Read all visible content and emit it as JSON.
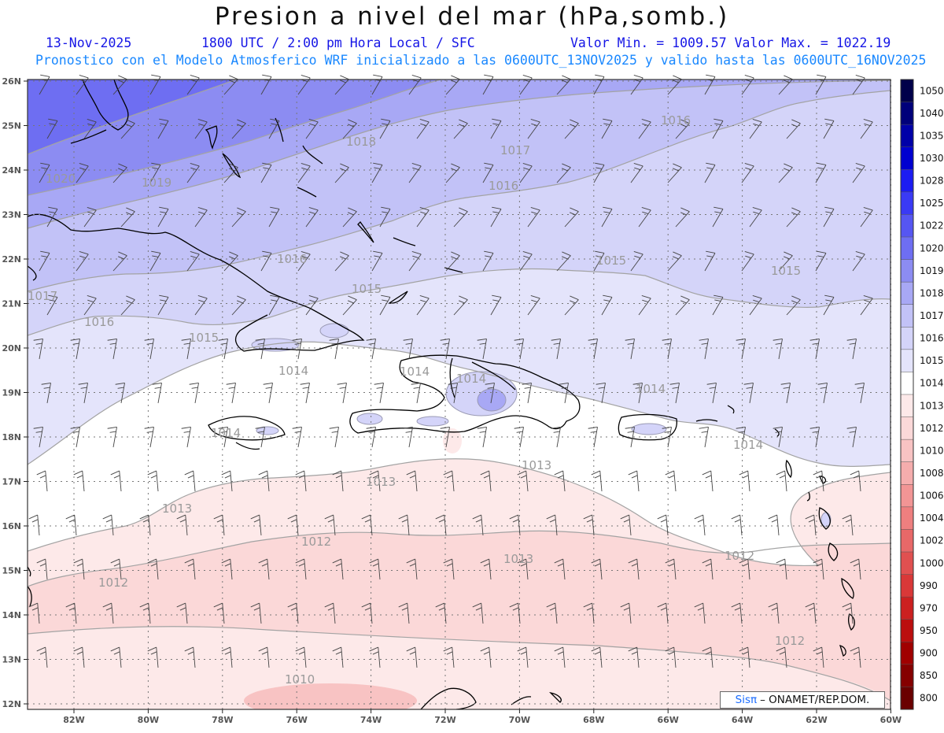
{
  "header": {
    "title": "Presion a nivel del mar (hPa,somb.)",
    "date": "13-Nov-2025",
    "time_label": "1800 UTC / 2:00 pm Hora Local / SFC",
    "min_max": "Valor Min. = 1009.57  Valor Max. = 1022.19",
    "run_info": "Pronostico con el Modelo Atmosferico WRF inicializado a las 0600UTC_13NOV2025 y valido hasta las  0600UTC_16NOV2025"
  },
  "map": {
    "lon_labels": [
      "82W",
      "80W",
      "78W",
      "76W",
      "74W",
      "72W",
      "70W",
      "68W",
      "66W",
      "64W",
      "62W",
      "60W"
    ],
    "lat_labels": [
      "26N",
      "25N",
      "24N",
      "23N",
      "22N",
      "21N",
      "20N",
      "19N",
      "18N",
      "17N",
      "16N",
      "15N",
      "14N",
      "13N",
      "12N"
    ],
    "value_range": {
      "min": 1009.57,
      "max": 1022.19
    },
    "pressure_bands": [
      {
        "level": "1020",
        "color": "#6e6ef2"
      },
      {
        "level": "1019",
        "color": "#8c8cf2"
      },
      {
        "level": "1018",
        "color": "#a8a8f5"
      },
      {
        "level": "1017",
        "color": "#c2c2f7"
      },
      {
        "level": "1016",
        "color": "#d4d4f9"
      },
      {
        "level": "1015",
        "color": "#e4e4fb"
      },
      {
        "level": "1014",
        "color": "#ffffff"
      },
      {
        "level": "1013",
        "color": "#fde9e9"
      },
      {
        "level": "1012",
        "color": "#fbd8d8"
      },
      {
        "level": "1010",
        "color": "#f8c3c3"
      }
    ],
    "contour_labels": [
      {
        "text": "1016"
      },
      {
        "text": "1018"
      },
      {
        "text": "1017"
      },
      {
        "text": "1016"
      },
      {
        "text": "1020"
      },
      {
        "text": "1019"
      },
      {
        "text": "1016"
      },
      {
        "text": "1015"
      },
      {
        "text": "1015"
      },
      {
        "text": "1017"
      },
      {
        "text": "1015"
      },
      {
        "text": "1016"
      },
      {
        "text": "1015"
      },
      {
        "text": "1014"
      },
      {
        "text": "1014"
      },
      {
        "text": "1014"
      },
      {
        "text": "1014"
      },
      {
        "text": "1014"
      },
      {
        "text": "1014"
      },
      {
        "text": "1013"
      },
      {
        "text": "1013"
      },
      {
        "text": "1013"
      },
      {
        "text": "1012"
      },
      {
        "text": "1012"
      },
      {
        "text": "1013"
      },
      {
        "text": "1012"
      },
      {
        "text": "1012"
      },
      {
        "text": "1010"
      }
    ]
  },
  "colorbar": {
    "levels": [
      "1050",
      "1040",
      "1035",
      "1030",
      "1028",
      "1025",
      "1022",
      "1020",
      "1019",
      "1018",
      "1017",
      "1016",
      "1015",
      "1014",
      "1013",
      "1012",
      "1010",
      "1008",
      "1006",
      "1004",
      "1002",
      "1000",
      "990",
      "970",
      "950",
      "900",
      "850",
      "800"
    ],
    "colors": [
      "#00004a",
      "#00007a",
      "#0000a8",
      "#0000d0",
      "#1c1cf2",
      "#3a3af5",
      "#5656f2",
      "#6e6ef2",
      "#8c8cf2",
      "#a8a8f5",
      "#c2c2f7",
      "#d4d4f9",
      "#e4e4fb",
      "#ffffff",
      "#fde9e9",
      "#fbd8d8",
      "#f8c3c3",
      "#f5adad",
      "#f29595",
      "#ee7f7f",
      "#e86868",
      "#e05050",
      "#d93838",
      "#cc2020",
      "#bb0e0e",
      "#a00000",
      "#850000",
      "#6a0000"
    ]
  },
  "credit": {
    "logo": "Sisπ",
    "text": "– ONAMET/REP.DOM."
  }
}
